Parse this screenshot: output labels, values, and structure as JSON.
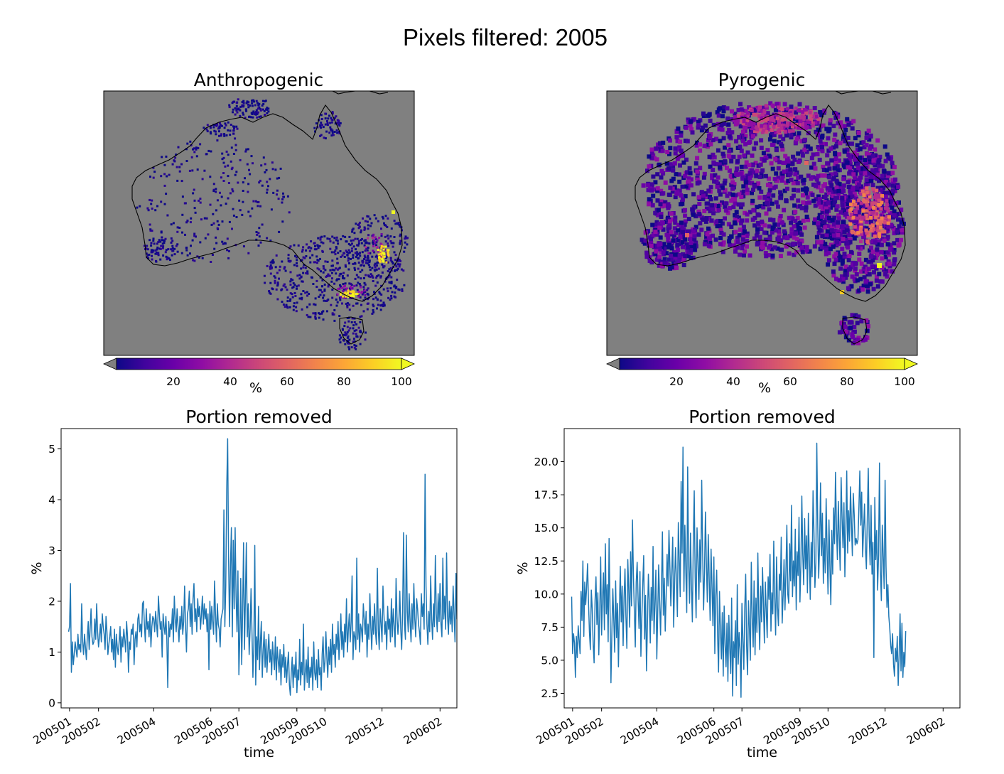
{
  "figure": {
    "title": "Pixels filtered: 2005"
  },
  "maps": [
    {
      "title": "Anthropogenic",
      "colorbar": {
        "label": "%",
        "ticks": [
          "20",
          "40",
          "60",
          "80",
          "100"
        ],
        "range": [
          0,
          100
        ],
        "extend": "both",
        "under_color": "#808080"
      },
      "background_color": "#808080",
      "colormap": "plasma"
    },
    {
      "title": "Pyrogenic",
      "colorbar": {
        "label": "%",
        "ticks": [
          "20",
          "40",
          "60",
          "80",
          "100"
        ],
        "range": [
          0,
          100
        ],
        "extend": "both",
        "under_color": "#808080"
      },
      "background_color": "#808080",
      "colormap": "plasma"
    }
  ],
  "chart_data": [
    {
      "type": "line",
      "title": "Portion removed",
      "xlabel": "time",
      "ylabel": "%",
      "x_ticks": [
        "200501",
        "200502",
        "200504",
        "200506",
        "200507",
        "200509",
        "200510",
        "200512",
        "200602"
      ],
      "y_ticks": [
        "0",
        "1",
        "2",
        "3",
        "4",
        "5"
      ],
      "ylim": [
        -0.1,
        5.4
      ],
      "x_range": [
        "2004-12-23",
        "2006-02-19"
      ],
      "series_start": "2004-12-31",
      "series_step_days": 1,
      "line_color": "#1f77b4",
      "values": [
        1.4,
        1.5,
        2.35,
        0.6,
        1.2,
        0.75,
        0.95,
        1.2,
        1.05,
        0.9,
        1.35,
        1.05,
        1.15,
        1.0,
        1.95,
        1.2,
        0.95,
        1.35,
        1.1,
        0.85,
        1.3,
        1.6,
        1.05,
        1.45,
        1.85,
        1.3,
        1.15,
        1.2,
        1.65,
        1.25,
        1.95,
        1.4,
        1.1,
        1.3,
        1.55,
        1.2,
        1.75,
        1.5,
        1.35,
        1.05,
        1.7,
        1.4,
        0.95,
        1.15,
        1.3,
        1.5,
        1.0,
        1.25,
        0.85,
        1.45,
        0.7,
        1.35,
        1.1,
        0.95,
        1.2,
        1.5,
        0.8,
        1.3,
        1.1,
        1.45,
        1.25,
        1.0,
        1.6,
        1.3,
        0.6,
        1.2,
        1.05,
        1.45,
        1.35,
        1.55,
        0.75,
        1.25,
        1.4,
        1.1,
        1.65,
        1.75,
        1.4,
        1.55,
        1.3,
        1.95,
        2.0,
        1.55,
        1.2,
        1.85,
        1.45,
        1.6,
        1.3,
        1.75,
        1.1,
        1.5,
        1.7,
        1.65,
        1.4,
        1.8,
        1.55,
        1.3,
        2.1,
        1.75,
        1.45,
        1.6,
        0.9,
        1.75,
        1.5,
        1.35,
        1.7,
        1.25,
        0.3,
        1.6,
        1.3,
        1.55,
        1.45,
        1.85,
        1.2,
        2.1,
        1.65,
        1.4,
        1.85,
        1.5,
        1.2,
        1.7,
        1.45,
        1.9,
        1.35,
        1.6,
        2.3,
        1.5,
        1.0,
        1.75,
        1.85,
        2.2,
        1.5,
        1.95,
        1.35,
        2.05,
        2.35,
        1.6,
        1.85,
        1.4,
        2.05,
        1.7,
        1.9,
        1.45,
        1.75,
        2.1,
        1.55,
        1.95,
        1.65,
        1.85,
        1.4,
        1.75,
        0.65,
        2.0,
        1.45,
        1.9,
        1.6,
        1.35,
        2.4,
        1.75,
        1.2,
        1.95,
        1.55,
        1.45,
        1.1,
        1.65,
        1.75,
        1.85,
        3.8,
        1.5,
        2.3,
        4.2,
        5.2,
        2.85,
        1.5,
        2.7,
        3.45,
        1.3,
        3.2,
        1.85,
        3.45,
        2.1,
        1.4,
        2.6,
        0.55,
        1.3,
        2.45,
        0.75,
        1.8,
        3.15,
        1.05,
        2.1,
        3.15,
        1.3,
        1.95,
        0.95,
        1.45,
        2.25,
        1.4,
        0.5,
        1.15,
        3.1,
        0.35,
        1.3,
        0.85,
        1.9,
        0.65,
        1.2,
        1.6,
        0.5,
        1.05,
        1.4,
        0.7,
        1.25,
        0.6,
        1.0,
        1.35,
        0.8,
        1.05,
        0.55,
        1.2,
        0.9,
        0.65,
        1.3,
        0.45,
        1.1,
        0.85,
        0.6,
        1.05,
        0.35,
        0.95,
        0.7,
        1.15,
        0.5,
        0.9,
        0.4,
        0.75,
        1.0,
        0.35,
        0.15,
        0.6,
        0.9,
        0.3,
        0.75,
        0.5,
        1.0,
        0.2,
        0.65,
        0.45,
        1.25,
        0.35,
        0.8,
        0.55,
        1.55,
        0.25,
        0.6,
        0.85,
        0.4,
        1.1,
        0.3,
        0.7,
        0.5,
        0.9,
        0.25,
        1.2,
        0.6,
        0.45,
        0.85,
        0.3,
        1.05,
        0.55,
        0.7,
        0.25,
        0.95,
        1.3,
        0.6,
        0.8,
        1.4,
        0.9,
        0.5,
        1.1,
        0.75,
        1.25,
        0.6,
        1.55,
        0.95,
        1.15,
        0.7,
        1.35,
        1.05,
        1.6,
        0.85,
        1.25,
        1.75,
        1.05,
        1.4,
        0.9,
        1.55,
        1.2,
        2.05,
        1.0,
        1.45,
        1.75,
        1.2,
        1.6,
        2.5,
        0.85,
        1.4,
        1.3,
        1.05,
        2.85,
        1.25,
        1.75,
        1.0,
        1.55,
        1.45,
        1.2,
        1.95,
        1.65,
        1.35,
        1.8,
        0.9,
        1.55,
        1.25,
        2.15,
        1.5,
        1.05,
        1.7,
        1.35,
        1.95,
        1.4,
        1.15,
        2.65,
        1.45,
        1.05,
        1.85,
        1.55,
        1.2,
        2.3,
        1.75,
        1.35,
        1.6,
        1.05,
        1.9,
        1.45,
        1.65,
        1.2,
        2.05,
        1.3,
        1.85,
        1.5,
        1.1,
        2.45,
        1.7,
        1.35,
        1.6,
        2.2,
        1.45,
        1.05,
        1.8,
        3.35,
        1.55,
        1.25,
        3.3,
        1.8,
        1.4,
        2.15,
        1.6,
        1.2,
        1.95,
        1.45,
        2.35,
        1.65,
        1.3,
        2.05,
        1.85,
        1.55,
        1.4,
        1.15,
        2.15,
        1.7,
        1.95,
        1.45,
        4.5,
        2.3,
        1.55,
        1.15,
        1.8,
        1.4,
        2.5,
        1.65,
        1.25,
        1.95,
        1.5,
        2.9,
        1.75,
        1.4,
        2.15,
        1.6,
        2.35,
        1.55,
        1.3,
        2.85,
        1.65,
        2.1,
        1.45,
        2.95,
        1.7,
        1.35,
        2.0,
        1.55,
        1.9,
        1.4,
        2.3,
        1.75,
        1.2,
        2.55,
        1.65,
        1.85,
        1.45,
        2.1,
        0.9,
        2.05,
        1.55,
        1.35,
        1.9,
        1.7,
        2.05,
        0.4,
        2.25,
        1.6,
        1.85,
        1.45,
        2.1,
        1.65,
        1.5,
        1.95,
        1.75,
        2.05,
        1.4,
        1.85,
        2.15,
        1.55,
        1.8,
        2.3,
        1.65,
        1.95,
        2.55,
        1.8,
        2.2,
        1.6,
        3.9,
        2.4,
        3.25,
        1.85,
        2.7,
        3.05,
        1.6,
        2.15,
        2.9,
        2.35,
        1.2,
        2.45,
        3.35,
        1.9,
        2.6,
        3.65,
        2.2,
        1.7,
        3.05,
        2.4,
        1.75,
        2.9,
        2.3,
        1.45
      ]
    },
    {
      "type": "line",
      "title": "Portion removed",
      "xlabel": "time",
      "ylabel": "%",
      "x_ticks": [
        "200501",
        "200502",
        "200504",
        "200506",
        "200507",
        "200509",
        "200510",
        "200512",
        "200602"
      ],
      "y_ticks": [
        "2.5",
        "5.0",
        "7.5",
        "10.0",
        "12.5",
        "15.0",
        "17.5",
        "20.0"
      ],
      "ylim": [
        1.4,
        22.5
      ],
      "x_range": [
        "2004-12-23",
        "2006-02-19"
      ],
      "series_start": "2004-12-31",
      "series_step_days": 1,
      "line_color": "#1f77b4",
      "values": [
        9.8,
        5.5,
        7.0,
        6.3,
        3.7,
        6.8,
        5.2,
        7.6,
        6.5,
        5.5,
        10.2,
        8.0,
        12.5,
        6.8,
        10.9,
        9.2,
        10.5,
        12.3,
        9.4,
        7.1,
        5.8,
        10.3,
        8.9,
        6.2,
        4.8,
        9.5,
        11.3,
        7.7,
        10.1,
        5.4,
        8.6,
        12.8,
        6.9,
        9.8,
        11.6,
        7.3,
        13.8,
        8.5,
        10.7,
        6.4,
        14.2,
        9.0,
        3.3,
        7.2,
        10.4,
        8.1,
        5.6,
        11.0,
        6.7,
        9.3,
        4.5,
        8.8,
        12.1,
        7.9,
        10.6,
        6.1,
        9.7,
        11.9,
        8.3,
        5.9,
        12.6,
        10.3,
        7.5,
        13.2,
        9.1,
        15.6,
        11.4,
        8.7,
        6.0,
        10.9,
        12.4,
        9.6,
        7.4,
        11.7,
        5.3,
        8.2,
        10.8,
        12.9,
        6.6,
        9.9,
        4.2,
        7.8,
        11.5,
        9.4,
        6.3,
        10.5,
        8.0,
        13.6,
        7.0,
        9.2,
        11.8,
        5.1,
        8.6,
        12.2,
        9.5,
        6.9,
        10.4,
        14.7,
        8.4,
        11.2,
        7.2,
        9.9,
        13.0,
        10.6,
        14.8,
        12.0,
        9.1,
        11.6,
        14.3,
        7.5,
        10.8,
        13.5,
        11.0,
        8.3,
        15.4,
        12.7,
        9.8,
        18.5,
        13.1,
        21.1,
        10.2,
        15.2,
        11.8,
        8.6,
        19.6,
        12.4,
        9.3,
        14.6,
        10.7,
        7.9,
        13.9,
        17.8,
        11.3,
        8.2,
        15.0,
        12.5,
        9.6,
        14.1,
        10.9,
        18.6,
        13.2,
        8.8,
        11.7,
        16.2,
        12.3,
        9.4,
        14.5,
        11.1,
        8.0,
        13.4,
        10.5,
        7.6,
        12.8,
        5.5,
        9.9,
        11.8,
        6.8,
        4.1,
        10.2,
        7.3,
        5.1,
        8.6,
        3.8,
        9.1,
        6.2,
        4.5,
        7.8,
        3.4,
        8.4,
        5.9,
        4.0,
        9.7,
        2.3,
        6.4,
        5.2,
        8.0,
        3.1,
        10.7,
        4.7,
        7.1,
        5.8,
        2.2,
        9.3,
        6.6,
        4.3,
        8.9,
        11.5,
        6.1,
        3.9,
        9.5,
        7.4,
        5.0,
        12.4,
        8.2,
        6.0,
        11.0,
        5.4,
        9.7,
        7.1,
        13.1,
        8.5,
        5.8,
        10.6,
        7.9,
        12.0,
        9.2,
        6.3,
        10.9,
        8.7,
        6.7,
        11.3,
        9.6,
        13.0,
        7.2,
        10.1,
        8.5,
        14.0,
        9.8,
        6.9,
        12.8,
        9.0,
        7.6,
        11.5,
        10.3,
        14.3,
        7.8,
        9.9,
        12.6,
        8.8,
        11.7,
        15.2,
        10.0,
        9.3,
        13.8,
        11.0,
        16.7,
        9.8,
        12.5,
        10.6,
        14.9,
        8.8,
        13.2,
        11.4,
        15.8,
        9.4,
        12.3,
        17.4,
        13.0,
        10.7,
        15.7,
        11.9,
        14.4,
        10.1,
        16.1,
        12.8,
        9.6,
        13.9,
        11.3,
        17.8,
        14.6,
        10.5,
        12.4,
        21.4,
        15.3,
        11.2,
        13.7,
        18.4,
        12.9,
        16.1,
        10.8,
        14.2,
        11.6,
        17.2,
        13.3,
        10.0,
        15.6,
        12.1,
        9.2,
        14.8,
        11.5,
        16.5,
        13.8,
        19.2,
        15.1,
        12.6,
        17.0,
        14.3,
        11.8,
        18.8,
        15.7,
        13.5,
        16.9,
        11.3,
        14.6,
        19.3,
        13.1,
        16.3,
        14.0,
        18.1,
        15.4,
        12.9,
        17.6,
        16.0,
        13.7,
        14.2,
        13.8,
        14.1,
        16.5,
        19.3,
        15.2,
        17.7,
        12.8,
        14.9,
        16.8,
        13.5,
        11.9,
        15.8,
        19.5,
        14.4,
        12.2,
        16.7,
        11.5,
        13.9,
        5.2,
        17.3,
        12.6,
        14.8,
        10.3,
        13.0,
        19.9,
        11.8,
        9.5,
        15.2,
        12.9,
        10.4,
        18.6,
        12.1,
        9.0,
        10.7,
        8.3,
        7.4,
        6.1,
        5.5,
        7.0,
        4.7,
        3.8,
        5.9,
        4.9,
        6.8,
        3.1,
        5.4,
        8.5,
        4.2,
        7.8,
        3.7,
        5.6,
        4.5,
        7.2
      ]
    }
  ]
}
